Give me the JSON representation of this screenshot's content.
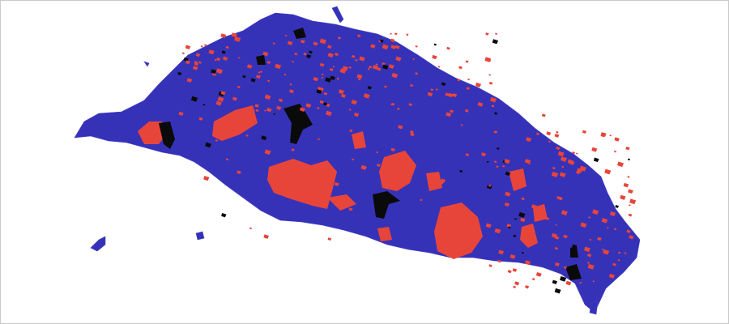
{
  "map": {
    "colors": {
      "land": "#3632b8",
      "land_edge": "#4642c8",
      "highlight": "#e8453a",
      "dark": "#0a0a0a",
      "background": "#ffffff",
      "frame": "#c9c9c9"
    },
    "legend": null,
    "title": ""
  }
}
